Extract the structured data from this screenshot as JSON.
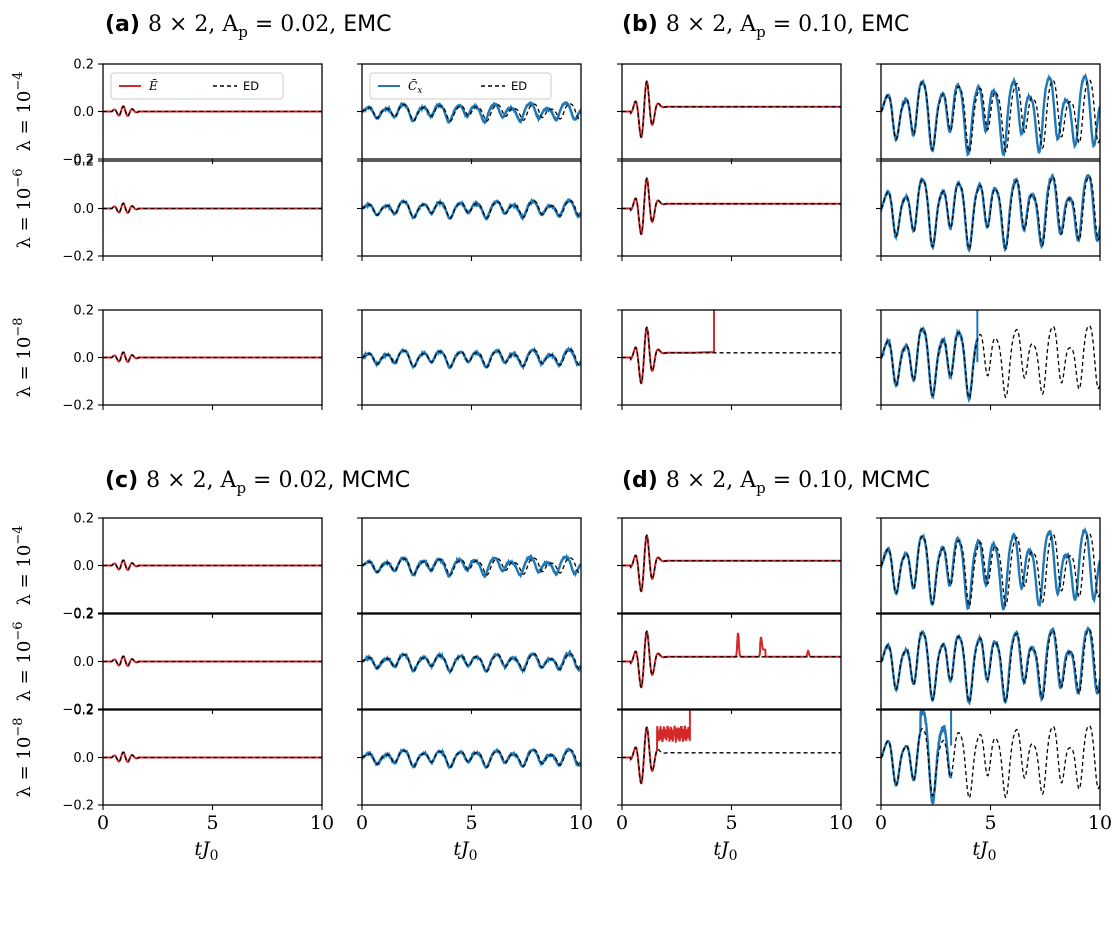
{
  "panel_titles": [
    {
      "tag": "(a)",
      "math": "8 × 2, A",
      "sub": "p",
      "value": " = 0.02, ",
      "method": "EMC"
    },
    {
      "tag": "(b)",
      "math": "8 × 2, A",
      "sub": "p",
      "value": " = 0.10, ",
      "method": "EMC"
    },
    {
      "tag": "(c)",
      "math": "8 × 2, A",
      "sub": "p",
      "value": " = 0.02, ",
      "method": "MCMC"
    },
    {
      "tag": "(d)",
      "math": "8 × 2, A",
      "sub": "p",
      "value": " = 0.10, ",
      "method": "MCMC"
    }
  ],
  "row_labels": [
    {
      "prefix": "λ = 10",
      "exp": "−4"
    },
    {
      "prefix": "λ = 10",
      "exp": "−6"
    },
    {
      "prefix": "λ = 10",
      "exp": "−8"
    }
  ],
  "legends": {
    "energy": {
      "series": "Ē",
      "ref": "ED"
    },
    "current": {
      "series": "C̄",
      "sub": "x",
      "ref": "ED"
    }
  },
  "axes": {
    "x_label": "tJ",
    "x_label_sub": "0",
    "x_ticks": [
      "0",
      "5",
      "10"
    ],
    "y_ticks": [
      "0.2",
      "0.0",
      "−0.2"
    ]
  },
  "colors": {
    "energy": "#d62728",
    "current": "#1f77b4",
    "reference": "#000000"
  },
  "chart_data": {
    "type": "line",
    "xlim": [
      0,
      10
    ],
    "ylim": [
      -0.2,
      0.2
    ],
    "x_ticks": [
      0,
      5,
      10
    ],
    "y_ticks": [
      -0.2,
      0.0,
      0.2
    ],
    "grid": false,
    "legend_placement": "top-left",
    "groups": [
      {
        "panel": "a",
        "amplitude": 0.02,
        "method": "EMC"
      },
      {
        "panel": "b",
        "amplitude": 0.1,
        "method": "EMC"
      },
      {
        "panel": "c",
        "amplitude": 0.02,
        "method": "MCMC"
      },
      {
        "panel": "d",
        "amplitude": 0.1,
        "method": "MCMC"
      }
    ],
    "lambdas": [
      0.0001,
      1e-06,
      1e-08
    ],
    "ed_energy": {
      "amp_0.02": {
        "pulse_peaks": [
          [
            0.55,
            0.015
          ],
          [
            0.8,
            -0.025
          ],
          [
            1.1,
            0.02
          ],
          [
            1.5,
            0.0
          ]
        ],
        "final": 0.0
      },
      "amp_0.10": {
        "pulse_peaks": [
          [
            0.5,
            0.0
          ],
          [
            0.8,
            0.1
          ],
          [
            1.0,
            -0.14
          ],
          [
            1.3,
            0.11
          ],
          [
            1.7,
            0.02
          ]
        ],
        "final": 0.02
      }
    },
    "ed_current": {
      "amp_0.02": {
        "amplitude": 0.025,
        "period": 0.85
      },
      "amp_0.10": {
        "amplitude": 0.11,
        "period": 0.85
      }
    },
    "vmc_breakdowns": [
      {
        "panel": "b",
        "lambda": 1e-08,
        "series": "energy",
        "blowup_t": 4.2
      },
      {
        "panel": "b",
        "lambda": 1e-08,
        "series": "current",
        "blowup_t": 4.4
      },
      {
        "panel": "d",
        "lambda": 1e-06,
        "series": "energy",
        "spikes": [
          [
            5.3,
            0.12
          ],
          [
            6.35,
            0.07
          ],
          [
            8.5,
            0.045
          ]
        ]
      },
      {
        "panel": "d",
        "lambda": 1e-08,
        "series": "energy",
        "noisy_from": 1.6,
        "blowup_t": 3.1
      },
      {
        "panel": "d",
        "lambda": 1e-08,
        "series": "current",
        "blowup_t": 3.2
      }
    ]
  }
}
